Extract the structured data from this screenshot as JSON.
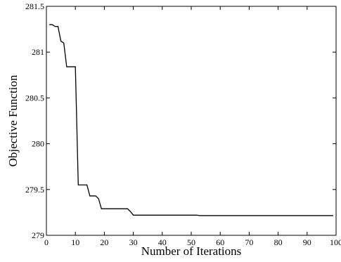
{
  "chart_data": {
    "type": "line",
    "title": "",
    "xlabel": "Number of Iterations",
    "ylabel": "Objective Function",
    "xlim": [
      0,
      100
    ],
    "ylim": [
      279,
      281.5
    ],
    "xticks": [
      0,
      10,
      20,
      30,
      40,
      50,
      60,
      70,
      80,
      90,
      100
    ],
    "yticks": [
      279,
      279.5,
      280,
      280.5,
      281,
      281.5
    ],
    "xtick_labels": [
      "0",
      "10",
      "20",
      "30",
      "40",
      "50",
      "60",
      "70",
      "80",
      "90",
      "100"
    ],
    "ytick_labels": [
      "279",
      "279.5",
      "280",
      "280.5",
      "281",
      "281.5"
    ],
    "grid": false,
    "series": [
      {
        "x": [
          1,
          2,
          3,
          4,
          5,
          6,
          7,
          8,
          9,
          10,
          11,
          12,
          13,
          14,
          15,
          16,
          17,
          18,
          19,
          20,
          25,
          28,
          29,
          30,
          35,
          40,
          45,
          50,
          52,
          53,
          60,
          70,
          80,
          90,
          99
        ],
        "y": [
          281.3,
          281.3,
          281.28,
          281.28,
          281.12,
          281.1,
          280.84,
          280.84,
          280.84,
          280.84,
          279.55,
          279.55,
          279.55,
          279.55,
          279.43,
          279.43,
          279.43,
          279.4,
          279.29,
          279.29,
          279.29,
          279.29,
          279.26,
          279.22,
          279.22,
          279.22,
          279.22,
          279.22,
          279.22,
          279.215,
          279.215,
          279.215,
          279.215,
          279.215,
          279.215
        ]
      }
    ]
  }
}
